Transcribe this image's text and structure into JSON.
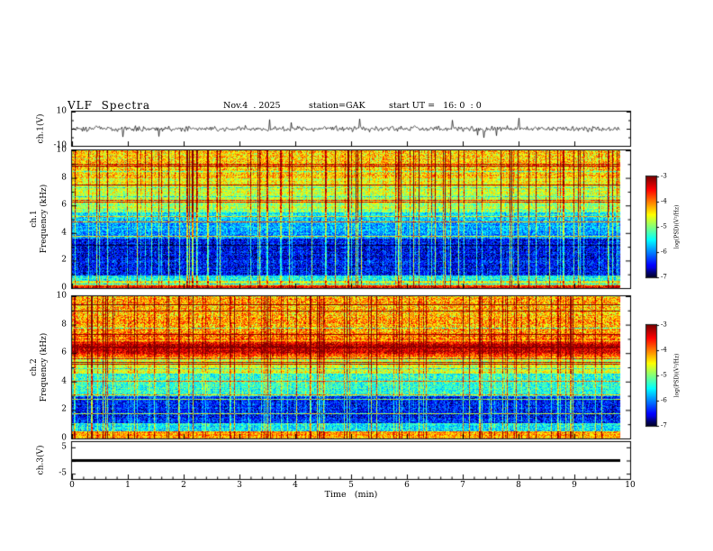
{
  "title": {
    "main": "VLF  Spectra",
    "date": "Nov.4  . 2025",
    "station": "station=GAK",
    "start_ut": "start UT =   16: 0  : 0"
  },
  "x_axis": {
    "label": "Time   (min)",
    "ticks": [
      "0",
      "1",
      "2",
      "3",
      "4",
      "5",
      "6",
      "7",
      "8",
      "9",
      "10"
    ]
  },
  "panels": {
    "ch1_wave": {
      "ylabel": "ch.1(V)",
      "yticks": [
        "10",
        "-10"
      ]
    },
    "ch1_spec": {
      "ylabel_lines": [
        "ch.1",
        "Frequency   (kHz)"
      ],
      "yticks": [
        "10",
        "8",
        "6",
        "4",
        "2",
        "0"
      ]
    },
    "ch2_spec": {
      "ylabel_lines": [
        "ch.2",
        "Frequency   (kHz)"
      ],
      "yticks": [
        "10",
        "8",
        "6",
        "4",
        "2",
        "0"
      ]
    },
    "ch3_wave": {
      "ylabel": "ch.3(V)",
      "yticks": [
        "5",
        "-5"
      ]
    }
  },
  "colorbars": {
    "label": "log(PSD)(V²/Hz)",
    "ticks": [
      "-3",
      "-4",
      "-5",
      "-6",
      "-7"
    ]
  },
  "colors": {
    "background": "#ffffff",
    "axis": "#000000",
    "colormap": "jet"
  },
  "chart_data": [
    {
      "type": "line",
      "panel": "ch.1(V)",
      "xlim_min": [
        0,
        10
      ],
      "ylim_V": [
        -10,
        10
      ],
      "summary": "continuous broadband noise trace ~±2 V with frequent impulsive spikes reaching ±8–10 V; record ends near 9.8 min"
    },
    {
      "type": "heatmap",
      "panel": "ch.1 Frequency (kHz)",
      "xlim_min": [
        0,
        10
      ],
      "ylim_kHz": [
        0,
        10
      ],
      "zlim_log_PSD": [
        -7,
        -3
      ],
      "z_units": "log(PSD) (V²/Hz)",
      "colormap": "jet",
      "bands": [
        {
          "f_kHz": [
            0,
            0.3
          ],
          "level": -3.7,
          "appearance": "bright yellow/red band at lowest frequencies"
        },
        {
          "f_kHz": [
            0.3,
            0.9
          ],
          "level": -5.0,
          "appearance": "green/blue striped band"
        },
        {
          "f_kHz": [
            0.9,
            3.6
          ],
          "level": -6.6,
          "appearance": "very dark blue / black region"
        },
        {
          "f_kHz": [
            3.6,
            5.5
          ],
          "level": -6.0,
          "appearance": "blue"
        },
        {
          "f_kHz": [
            5.5,
            8.0
          ],
          "level": -4.9,
          "appearance": "cyan-green"
        },
        {
          "f_kHz": [
            8.0,
            10.0
          ],
          "level": -4.5,
          "appearance": "green-yellow with red specks"
        }
      ],
      "transients": "dense vertical sferic streaks spanning 0–10 kHz, about +1 to +2 decades above background"
    },
    {
      "type": "heatmap",
      "panel": "ch.2 Frequency (kHz)",
      "xlim_min": [
        0,
        10
      ],
      "ylim_kHz": [
        0,
        10
      ],
      "zlim_log_PSD": [
        -7,
        -3
      ],
      "z_units": "log(PSD) (V²/Hz)",
      "colormap": "jet",
      "bands": [
        {
          "f_kHz": [
            0,
            0.55
          ],
          "level": -4.3,
          "appearance": "green-yellow band near bottom"
        },
        {
          "f_kHz": [
            0.55,
            1.1
          ],
          "level": -5.7,
          "appearance": "blue"
        },
        {
          "f_kHz": [
            1.1,
            3.0
          ],
          "level": -6.5,
          "appearance": "dark blue/black with cyan horizontal lines"
        },
        {
          "f_kHz": [
            3.0,
            4.6
          ],
          "level": -5.5,
          "appearance": "cyan speckle"
        },
        {
          "f_kHz": [
            4.6,
            5.7
          ],
          "level": -4.8,
          "appearance": "green"
        },
        {
          "f_kHz": [
            5.7,
            7.2
          ],
          "level": -3.6,
          "appearance": "intense orange-red hiss band centered ~6.4 kHz"
        },
        {
          "f_kHz": [
            7.2,
            10.0
          ],
          "level": -4.3,
          "appearance": "yellow-orange-green mottle with red streaks"
        }
      ],
      "transients": "vertical sferic streaks across all frequencies"
    },
    {
      "type": "line",
      "panel": "ch.3(V)",
      "xlim_min": [
        0,
        10
      ],
      "ylim_V": [
        -5,
        5
      ],
      "values": "constant 0 V",
      "summary": "flat thick black trace at 0 V for the entire record"
    }
  ]
}
